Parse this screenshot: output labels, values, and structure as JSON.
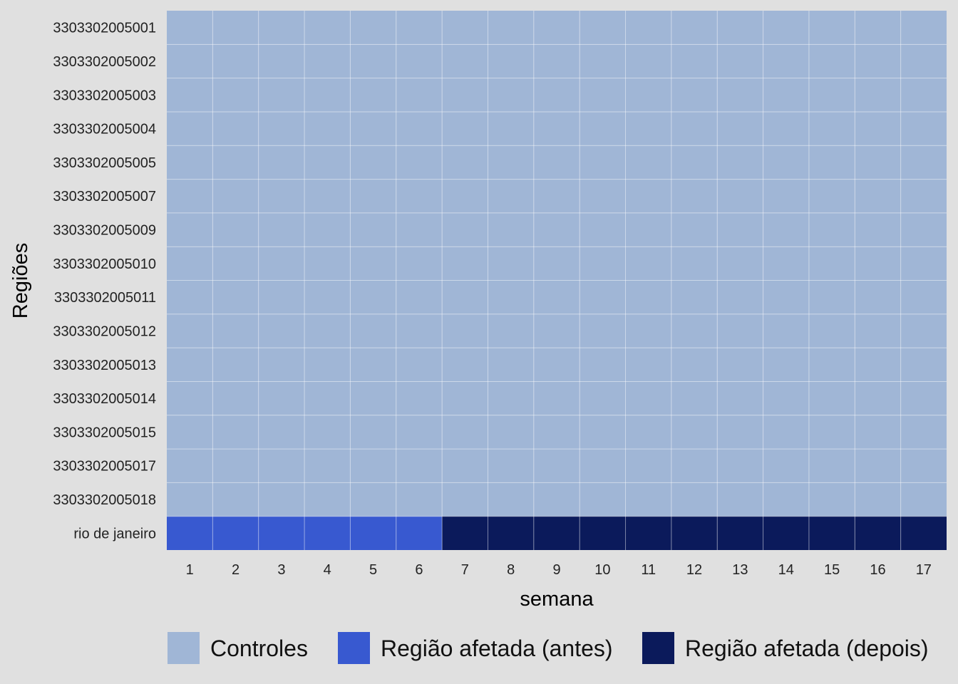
{
  "chart_data": {
    "type": "heatmap",
    "title": "",
    "xlabel": "semana",
    "ylabel": "Regiões",
    "x": [
      1,
      2,
      3,
      4,
      5,
      6,
      7,
      8,
      9,
      10,
      11,
      12,
      13,
      14,
      15,
      16,
      17
    ],
    "y": [
      "3303302005001",
      "3303302005002",
      "3303302005003",
      "3303302005004",
      "3303302005005",
      "3303302005007",
      "3303302005009",
      "3303302005010",
      "3303302005011",
      "3303302005012",
      "3303302005013",
      "3303302005014",
      "3303302005015",
      "3303302005017",
      "3303302005018",
      "rio de janeiro"
    ],
    "categories": [
      "Controles",
      "Região afetada (antes)",
      "Região afetada (depois)"
    ],
    "colors": {
      "Controles": "#a0b6d6",
      "Região afetada (antes)": "#3859d0",
      "Região afetada (depois)": "#0b1a5b"
    },
    "values": [
      [
        0,
        0,
        0,
        0,
        0,
        0,
        0,
        0,
        0,
        0,
        0,
        0,
        0,
        0,
        0,
        0,
        0
      ],
      [
        0,
        0,
        0,
        0,
        0,
        0,
        0,
        0,
        0,
        0,
        0,
        0,
        0,
        0,
        0,
        0,
        0
      ],
      [
        0,
        0,
        0,
        0,
        0,
        0,
        0,
        0,
        0,
        0,
        0,
        0,
        0,
        0,
        0,
        0,
        0
      ],
      [
        0,
        0,
        0,
        0,
        0,
        0,
        0,
        0,
        0,
        0,
        0,
        0,
        0,
        0,
        0,
        0,
        0
      ],
      [
        0,
        0,
        0,
        0,
        0,
        0,
        0,
        0,
        0,
        0,
        0,
        0,
        0,
        0,
        0,
        0,
        0
      ],
      [
        0,
        0,
        0,
        0,
        0,
        0,
        0,
        0,
        0,
        0,
        0,
        0,
        0,
        0,
        0,
        0,
        0
      ],
      [
        0,
        0,
        0,
        0,
        0,
        0,
        0,
        0,
        0,
        0,
        0,
        0,
        0,
        0,
        0,
        0,
        0
      ],
      [
        0,
        0,
        0,
        0,
        0,
        0,
        0,
        0,
        0,
        0,
        0,
        0,
        0,
        0,
        0,
        0,
        0
      ],
      [
        0,
        0,
        0,
        0,
        0,
        0,
        0,
        0,
        0,
        0,
        0,
        0,
        0,
        0,
        0,
        0,
        0
      ],
      [
        0,
        0,
        0,
        0,
        0,
        0,
        0,
        0,
        0,
        0,
        0,
        0,
        0,
        0,
        0,
        0,
        0
      ],
      [
        0,
        0,
        0,
        0,
        0,
        0,
        0,
        0,
        0,
        0,
        0,
        0,
        0,
        0,
        0,
        0,
        0
      ],
      [
        0,
        0,
        0,
        0,
        0,
        0,
        0,
        0,
        0,
        0,
        0,
        0,
        0,
        0,
        0,
        0,
        0
      ],
      [
        0,
        0,
        0,
        0,
        0,
        0,
        0,
        0,
        0,
        0,
        0,
        0,
        0,
        0,
        0,
        0,
        0
      ],
      [
        0,
        0,
        0,
        0,
        0,
        0,
        0,
        0,
        0,
        0,
        0,
        0,
        0,
        0,
        0,
        0,
        0
      ],
      [
        0,
        0,
        0,
        0,
        0,
        0,
        0,
        0,
        0,
        0,
        0,
        0,
        0,
        0,
        0,
        0,
        0
      ],
      [
        1,
        1,
        1,
        1,
        1,
        1,
        2,
        2,
        2,
        2,
        2,
        2,
        2,
        2,
        2,
        2,
        2
      ]
    ],
    "legend_position": "bottom",
    "grid": true
  }
}
